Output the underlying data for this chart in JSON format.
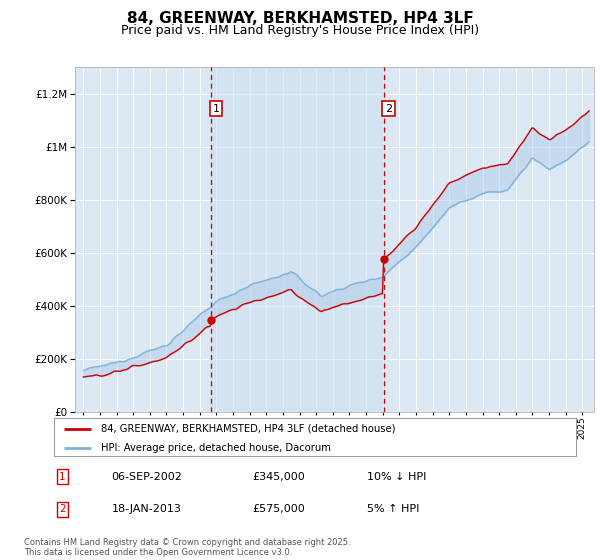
{
  "title": "84, GREENWAY, BERKHAMSTED, HP4 3LF",
  "subtitle": "Price paid vs. HM Land Registry's House Price Index (HPI)",
  "title_fontsize": 11,
  "subtitle_fontsize": 9,
  "ylim": [
    0,
    1300000
  ],
  "xlim_start": 1994.5,
  "xlim_end": 2025.7,
  "background_color": "#ffffff",
  "plot_bg_color": "#dce9f5",
  "shade_bg_color": "#ccdff0",
  "grid_color": "#ffffff",
  "red_line_color": "#cc0000",
  "blue_line_color": "#7fb3d9",
  "fill_color": "#ccdff0",
  "vline_color": "#cc0000",
  "marker_box_color": "#cc0000",
  "transaction1_x": 2002.68,
  "transaction1_y": 345000,
  "transaction1_label": "1",
  "transaction1_date": "06-SEP-2002",
  "transaction1_price": "£345,000",
  "transaction1_hpi": "10% ↓ HPI",
  "transaction2_x": 2013.05,
  "transaction2_y": 575000,
  "transaction2_label": "2",
  "transaction2_date": "18-JAN-2013",
  "transaction2_price": "£575,000",
  "transaction2_hpi": "5% ↑ HPI",
  "legend_line1": "84, GREENWAY, BERKHAMSTED, HP4 3LF (detached house)",
  "legend_line2": "HPI: Average price, detached house, Dacorum",
  "footer": "Contains HM Land Registry data © Crown copyright and database right 2025.\nThis data is licensed under the Open Government Licence v3.0.",
  "yticks": [
    0,
    200000,
    400000,
    600000,
    800000,
    1000000,
    1200000
  ],
  "ytick_labels": [
    "£0",
    "£200K",
    "£400K",
    "£600K",
    "£800K",
    "£1M",
    "£1.2M"
  ]
}
